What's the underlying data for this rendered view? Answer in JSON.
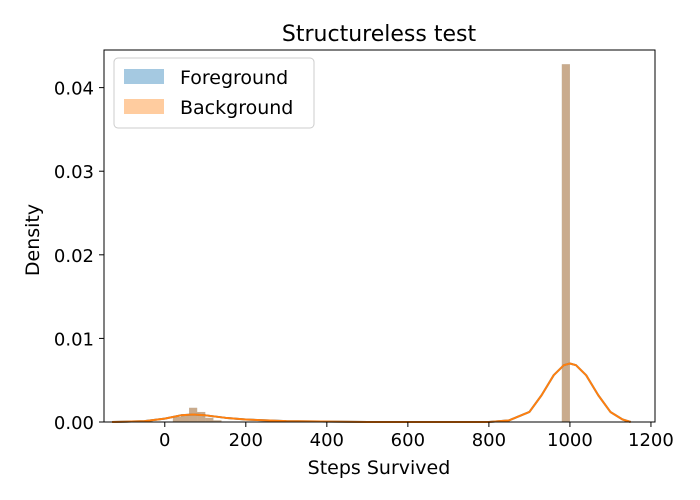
{
  "chart_data": {
    "type": "histogram",
    "title": "Structureless test",
    "xlabel": "Steps Survived",
    "ylabel": "Density",
    "xlim": [
      -150,
      1210
    ],
    "ylim": [
      0,
      0.0445
    ],
    "grid": false,
    "legend_position": "top-left",
    "xticks": [
      0,
      200,
      400,
      600,
      800,
      1000,
      1200
    ],
    "yticks": [
      0.0,
      0.01,
      0.02,
      0.03,
      0.04
    ],
    "xtick_labels": [
      "0",
      "200",
      "400",
      "600",
      "800",
      "1000",
      "1200"
    ],
    "ytick_labels": [
      "0.00",
      "0.01",
      "0.02",
      "0.03",
      "0.04"
    ],
    "series": [
      {
        "name": "Foreground",
        "color": "#1f77b4",
        "bars": [
          {
            "x0": 20,
            "x1": 40,
            "y": 0.0006
          },
          {
            "x0": 40,
            "x1": 60,
            "y": 0.0008
          },
          {
            "x0": 60,
            "x1": 80,
            "y": 0.0017
          },
          {
            "x0": 80,
            "x1": 100,
            "y": 0.0012
          },
          {
            "x0": 100,
            "x1": 120,
            "y": 0.0005
          },
          {
            "x0": 120,
            "x1": 140,
            "y": 0.0002
          },
          {
            "x0": 980,
            "x1": 1000,
            "y": 0.0428
          }
        ],
        "kde": [
          [
            -130,
            0.0
          ],
          [
            -50,
            0.0001
          ],
          [
            0,
            0.0004
          ],
          [
            40,
            0.0008
          ],
          [
            70,
            0.0009
          ],
          [
            100,
            0.0008
          ],
          [
            150,
            0.0005
          ],
          [
            200,
            0.0003
          ],
          [
            300,
            0.0001
          ],
          [
            500,
            0.0
          ],
          [
            800,
            0.0
          ],
          [
            850,
            0.0002
          ],
          [
            900,
            0.0012
          ],
          [
            930,
            0.0032
          ],
          [
            960,
            0.0056
          ],
          [
            985,
            0.0068
          ],
          [
            1000,
            0.007
          ],
          [
            1015,
            0.0068
          ],
          [
            1040,
            0.0056
          ],
          [
            1070,
            0.0032
          ],
          [
            1100,
            0.0012
          ],
          [
            1130,
            0.0003
          ],
          [
            1150,
            0.0
          ]
        ]
      },
      {
        "name": "Background",
        "color": "#ff7f0e",
        "bars": [
          {
            "x0": 20,
            "x1": 40,
            "y": 0.0006
          },
          {
            "x0": 40,
            "x1": 60,
            "y": 0.0008
          },
          {
            "x0": 60,
            "x1": 80,
            "y": 0.0017
          },
          {
            "x0": 80,
            "x1": 100,
            "y": 0.0012
          },
          {
            "x0": 100,
            "x1": 120,
            "y": 0.0005
          },
          {
            "x0": 120,
            "x1": 140,
            "y": 0.0002
          },
          {
            "x0": 980,
            "x1": 1000,
            "y": 0.0428
          }
        ],
        "kde": [
          [
            -130,
            0.0
          ],
          [
            -50,
            0.0001
          ],
          [
            0,
            0.0004
          ],
          [
            40,
            0.0008
          ],
          [
            70,
            0.0009
          ],
          [
            100,
            0.0008
          ],
          [
            150,
            0.0005
          ],
          [
            200,
            0.0003
          ],
          [
            300,
            0.0001
          ],
          [
            500,
            0.0
          ],
          [
            800,
            0.0
          ],
          [
            850,
            0.0002
          ],
          [
            900,
            0.0012
          ],
          [
            930,
            0.0032
          ],
          [
            960,
            0.0056
          ],
          [
            985,
            0.0068
          ],
          [
            1000,
            0.007
          ],
          [
            1015,
            0.0068
          ],
          [
            1040,
            0.0056
          ],
          [
            1070,
            0.0032
          ],
          [
            1100,
            0.0012
          ],
          [
            1130,
            0.0003
          ],
          [
            1150,
            0.0
          ]
        ]
      }
    ]
  }
}
